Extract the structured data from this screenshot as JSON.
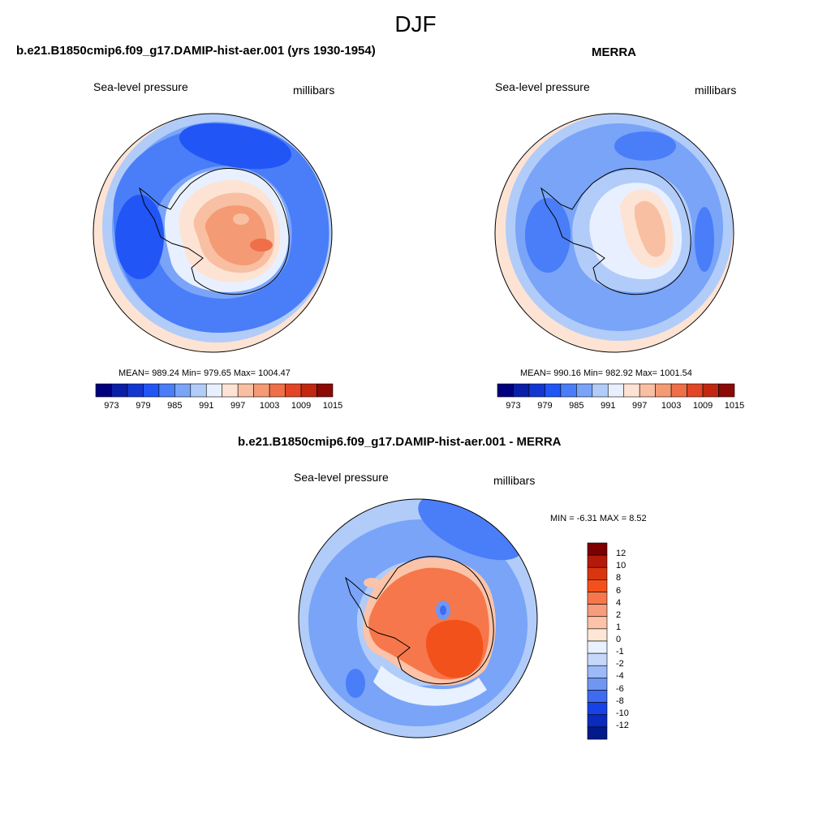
{
  "page": {
    "title": "DJF"
  },
  "panels": [
    {
      "title": "b.e21.B1850cmip6.f09_g17.DAMIP-hist-aer.001 (yrs 1930-1954)",
      "left_label": "Sea-level pressure",
      "right_label": "millibars",
      "stats": "MEAN= 989.24  Min= 979.65  Max= 1004.47"
    },
    {
      "title": "MERRA",
      "left_label": "Sea-level pressure",
      "right_label": "millibars",
      "stats": "MEAN= 990.16  Min= 982.92  Max= 1001.54"
    },
    {
      "title": "b.e21.B1850cmip6.f09_g17.DAMIP-hist-aer.001 - MERRA",
      "left_label": "Sea-level pressure",
      "right_label": "millibars",
      "stats": "MIN =  -6.31 MAX =   8.52"
    }
  ],
  "colorbar_abs": {
    "tick_labels": [
      "973",
      "979",
      "985",
      "991",
      "997",
      "1003",
      "1009",
      "1015"
    ],
    "colors": [
      "#00007f",
      "#0a1fa8",
      "#1436d0",
      "#2255f5",
      "#4a7df8",
      "#79a4f8",
      "#b1ccf8",
      "#e8f0ff",
      "#fde3d4",
      "#f8bfa3",
      "#f49a74",
      "#ef6f49",
      "#e24626",
      "#c22712",
      "#8b0a05"
    ]
  },
  "colorbar_diff": {
    "tick_labels": [
      "12",
      "10",
      "8",
      "6",
      "4",
      "2",
      "1",
      "0",
      "-1",
      "-2",
      "-4",
      "-6",
      "-8",
      "-10",
      "-12"
    ],
    "colors": [
      "#7d0000",
      "#b31a0a",
      "#d8360f",
      "#f3511b",
      "#f6774b",
      "#f89c7e",
      "#fbc3a8",
      "#fde6d6",
      "#e8f1ff",
      "#c5d8fa",
      "#9bbaf6",
      "#6f97f2",
      "#3f6bf0",
      "#1743e6",
      "#0a2bbd",
      "#021a8a"
    ]
  },
  "map_colors": {
    "ocean_light": "#b1ccf8",
    "ocean_mid": "#79a4f8",
    "ocean_deep": "#4a7df8",
    "ocean_darkest": "#2255f5",
    "rim_pink": "#fde3d4",
    "land_pale": "#e8f0ff",
    "land_peach": "#f8bfa3",
    "land_orange": "#f49a74",
    "land_red": "#ef6f49",
    "diff_red": "#f3511b",
    "diff_orange": "#f6774b",
    "diff_pale": "#fbc3a8",
    "diff_ocean": "#9bbaf6",
    "diff_blue": "#6f97f2",
    "diff_white": "#e8f1ff"
  }
}
